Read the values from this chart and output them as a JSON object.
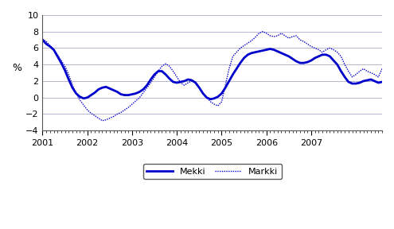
{
  "title": "",
  "ylabel": "%",
  "ylim": [
    -4,
    10
  ],
  "yticks": [
    -4,
    -2,
    0,
    2,
    4,
    6,
    8,
    10
  ],
  "bg_color": "#ffffff",
  "line_color": "#0000cc",
  "mekki_lw": 2.0,
  "markki_lw": 1.0,
  "mekki": [
    7.0,
    6.5,
    6.2,
    5.8,
    5.0,
    4.2,
    3.3,
    2.2,
    1.2,
    0.5,
    0.1,
    -0.1,
    0.0,
    0.3,
    0.6,
    1.0,
    1.2,
    1.3,
    1.1,
    0.9,
    0.7,
    0.4,
    0.3,
    0.3,
    0.4,
    0.5,
    0.7,
    1.0,
    1.5,
    2.2,
    2.8,
    3.2,
    3.2,
    2.8,
    2.3,
    1.9,
    1.8,
    1.9,
    2.0,
    2.2,
    2.1,
    1.8,
    1.2,
    0.5,
    0.0,
    -0.2,
    -0.1,
    0.1,
    0.5,
    1.2,
    2.0,
    2.8,
    3.5,
    4.2,
    4.8,
    5.2,
    5.4,
    5.5,
    5.6,
    5.7,
    5.8,
    5.9,
    5.8,
    5.6,
    5.4,
    5.2,
    5.0,
    4.7,
    4.4,
    4.2,
    4.2,
    4.3,
    4.5,
    4.8,
    5.0,
    5.2,
    5.2,
    5.0,
    4.5,
    4.0,
    3.2,
    2.5,
    1.9,
    1.7,
    1.7,
    1.8,
    2.0,
    2.1,
    2.2,
    2.0,
    1.8,
    1.9
  ],
  "markki": [
    7.1,
    6.8,
    6.3,
    5.8,
    5.2,
    4.5,
    3.8,
    2.8,
    1.5,
    0.5,
    -0.3,
    -0.9,
    -1.5,
    -1.9,
    -2.2,
    -2.5,
    -2.8,
    -2.7,
    -2.5,
    -2.3,
    -2.0,
    -1.8,
    -1.5,
    -1.2,
    -0.8,
    -0.4,
    0.0,
    0.6,
    1.2,
    1.8,
    2.5,
    3.2,
    3.8,
    4.1,
    3.8,
    3.2,
    2.5,
    1.8,
    1.5,
    1.8,
    2.0,
    1.8,
    1.2,
    0.5,
    0.0,
    -0.5,
    -0.8,
    -1.0,
    -0.5,
    1.5,
    3.5,
    5.0,
    5.5,
    6.0,
    6.3,
    6.6,
    6.9,
    7.3,
    7.8,
    8.0,
    7.8,
    7.5,
    7.4,
    7.5,
    7.8,
    7.5,
    7.2,
    7.4,
    7.5,
    7.0,
    6.8,
    6.5,
    6.2,
    6.0,
    5.8,
    5.5,
    5.8,
    6.0,
    5.8,
    5.5,
    5.0,
    4.0,
    3.2,
    2.5,
    2.8,
    3.2,
    3.5,
    3.2,
    3.0,
    2.8,
    2.5,
    3.5
  ],
  "xtick_labels": [
    "2001",
    "2002",
    "2003",
    "2004",
    "2005",
    "2006",
    "2007"
  ],
  "xtick_positions": [
    0,
    12,
    24,
    36,
    48,
    60,
    72
  ]
}
